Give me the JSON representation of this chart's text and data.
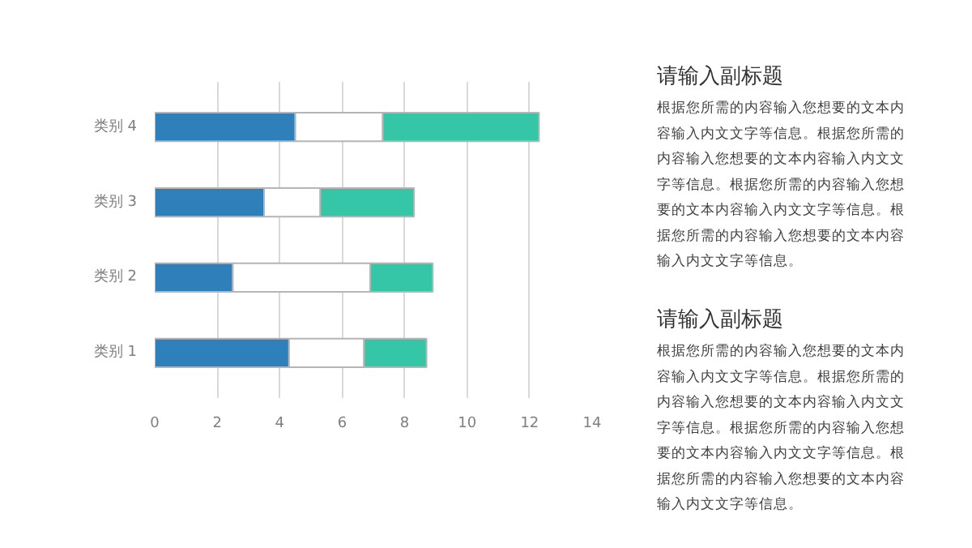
{
  "chart_data": [
    {
      "type": "bar",
      "orientation": "horizontal",
      "stacked": true,
      "categories": [
        "类别 4",
        "类别 3",
        "类别 2",
        "类别 1"
      ],
      "series": [
        {
          "color": "#2e7fba",
          "values": [
            4.5,
            3.5,
            2.5,
            4.3
          ]
        },
        {
          "color": "#ffffff",
          "values": [
            2.8,
            1.8,
            4.4,
            2.4
          ]
        },
        {
          "color": "#34c6a6",
          "values": [
            5.0,
            3.0,
            2.0,
            2.0
          ]
        }
      ],
      "xlim": [
        0,
        14
      ],
      "xticks": [
        0,
        2,
        4,
        6,
        8,
        10,
        12,
        14
      ],
      "grid": "x"
    },
    {
      "type": "other",
      "title": "请输入副标题",
      "annotations": [
        "根据您所需的内容输入您想要的文本内容输入内文文字等信息。根据您所需的内容输入您想要的文本内容输入内文文字等信息。根据您所需的内容输入您想要的文本内容输入内文文字等信息。根据您所需的内容输入您想要的文本内容输入内文文字等信息。"
      ]
    },
    {
      "type": "other",
      "title": "请输入副标题",
      "annotations": [
        "根据您所需的内容输入您想要的文本内容输入内文文字等信息。根据您所需的内容输入您想要的文本内容输入内文文字等信息。根据您所需的内容输入您想要的文本内容输入内文文字等信息。根据您所需的内容输入您想要的文本内容输入内文文字等信息。"
      ]
    }
  ]
}
